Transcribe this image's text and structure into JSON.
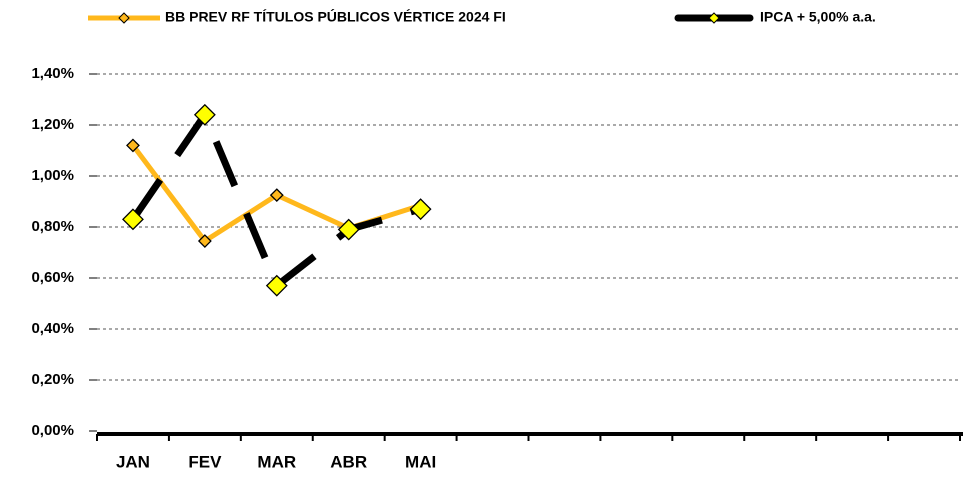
{
  "chart_data": {
    "type": "line",
    "categories": [
      "JAN",
      "FEV",
      "MAR",
      "ABR",
      "MAI",
      null,
      null,
      null,
      null,
      null,
      null,
      null
    ],
    "series": [
      {
        "name": "BB PREV RF TÍTULOS PÚBLICOS VÉRTICE 2024 FI",
        "color": "#ffb81c",
        "marker_color": "#ffb81c",
        "values": [
          1.12,
          0.745,
          0.925,
          0.795,
          0.885,
          null,
          null,
          null,
          null,
          null,
          null,
          null
        ]
      },
      {
        "name": "IPCA + 5,00% a.a.",
        "color": "#000000",
        "marker_color": "#ffff00",
        "values": [
          0.83,
          1.24,
          0.57,
          0.79,
          0.87,
          null,
          null,
          null,
          null,
          null,
          null,
          null
        ]
      }
    ],
    "ylim": [
      0,
      1.4
    ],
    "yticks": [
      {
        "value": 0,
        "label": "0,00%"
      },
      {
        "value": 0.2,
        "label": "0,20%"
      },
      {
        "value": 0.4,
        "label": "0,40%"
      },
      {
        "value": 0.6,
        "label": "0,60%"
      },
      {
        "value": 0.8,
        "label": "0,80%"
      },
      {
        "value": 1.0,
        "label": "1,00%"
      },
      {
        "value": 1.2,
        "label": "1,20%"
      },
      {
        "value": 1.4,
        "label": "1,40%"
      }
    ],
    "grid": true,
    "legend": "top"
  }
}
